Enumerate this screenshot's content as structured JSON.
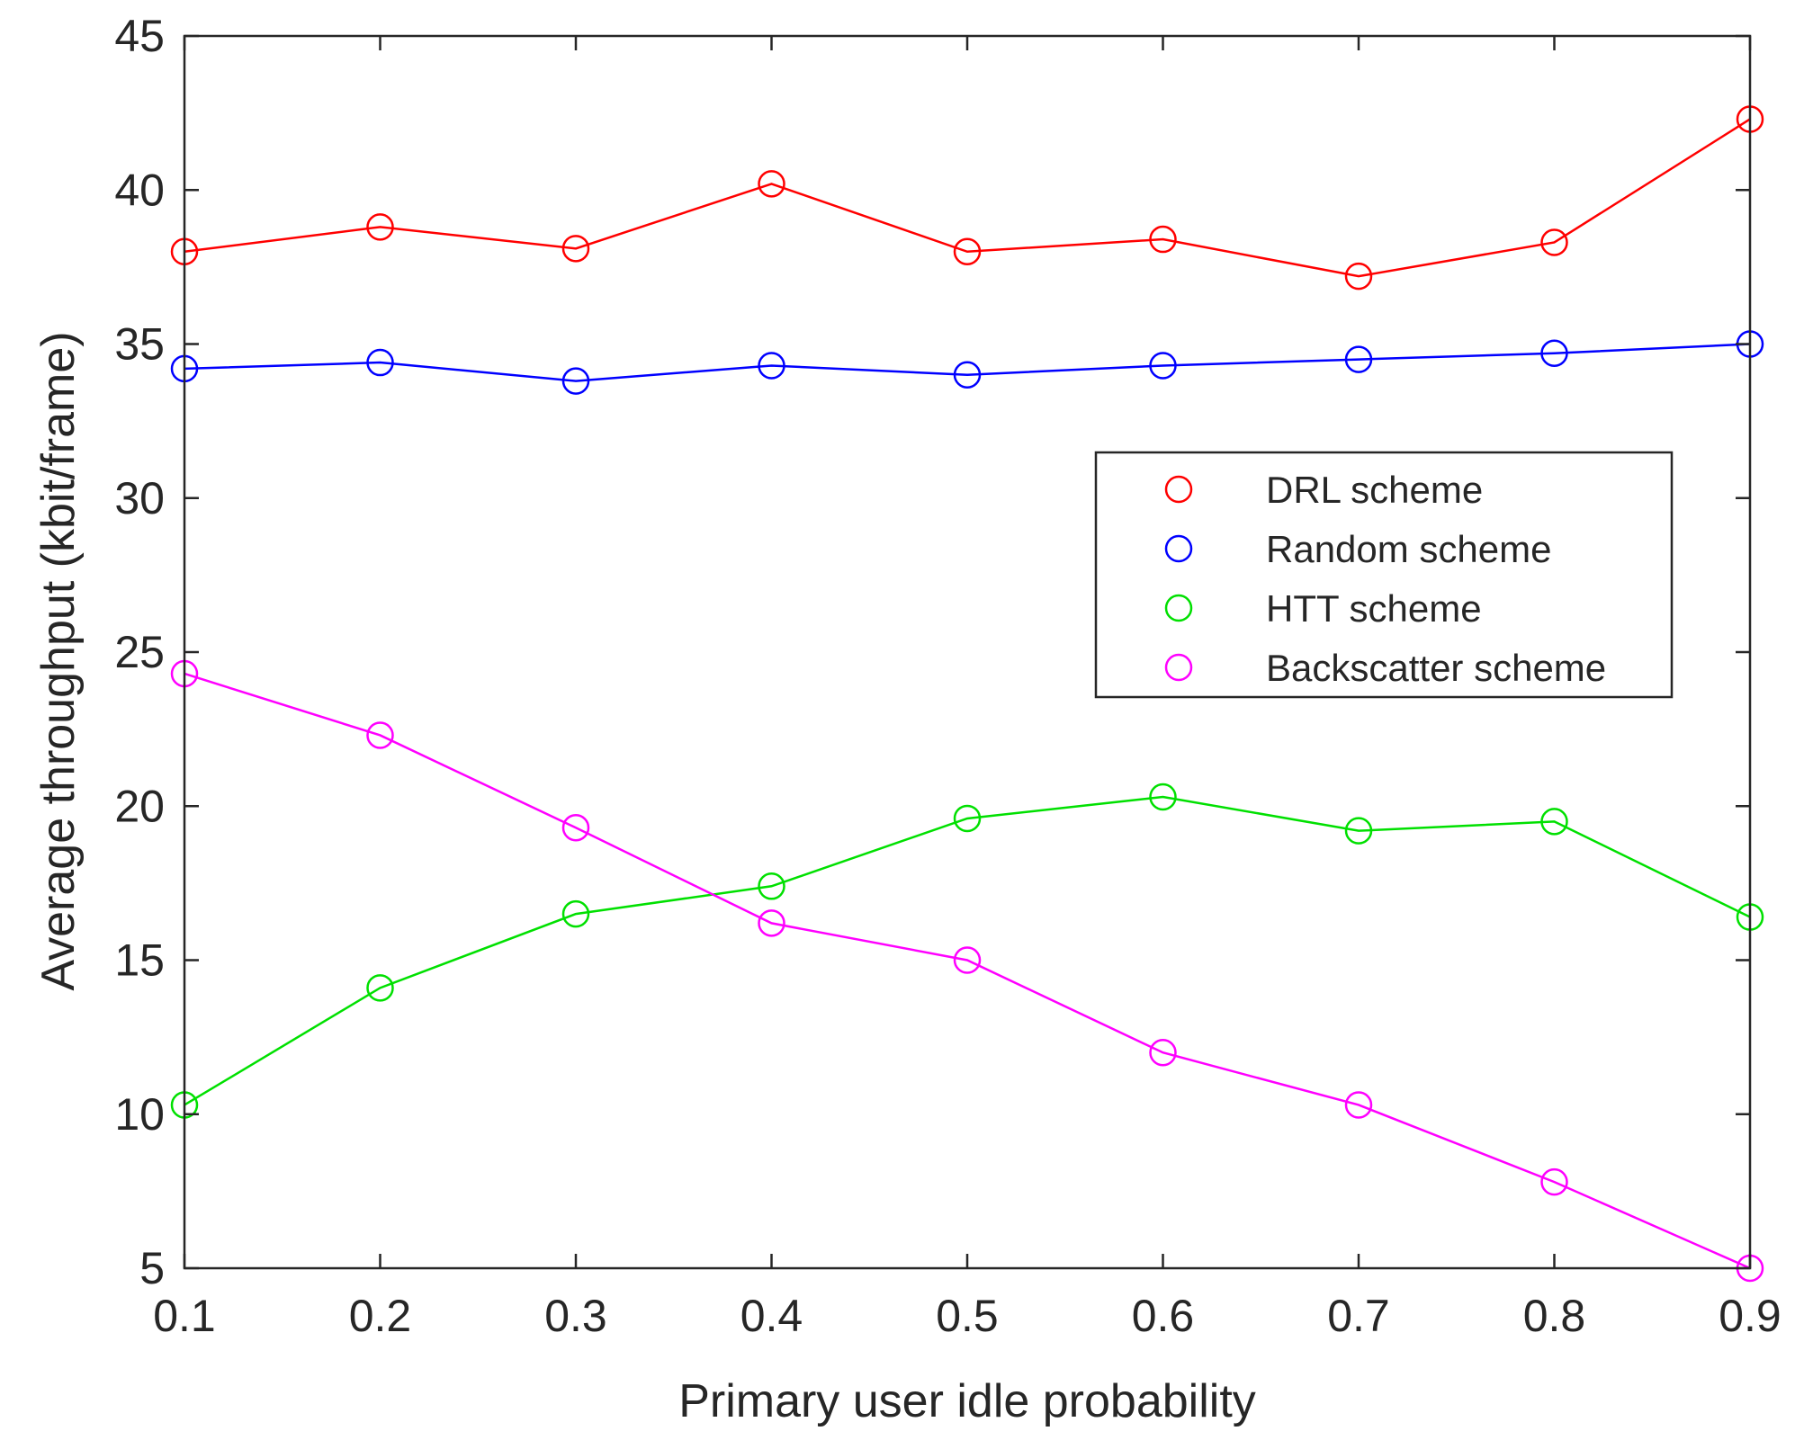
{
  "chart_data": {
    "type": "line",
    "title": "",
    "xlabel": "Primary user idle probability",
    "ylabel": "Average throughput  (kbit/frame)",
    "xlim": [
      0.1,
      0.9
    ],
    "ylim": [
      5,
      45
    ],
    "xticks": [
      "0.1",
      "0.2",
      "0.3",
      "0.4",
      "0.5",
      "0.6",
      "0.7",
      "0.8",
      "0.9"
    ],
    "yticks": [
      "5",
      "10",
      "15",
      "20",
      "25",
      "30",
      "35",
      "40",
      "45"
    ],
    "grid": false,
    "legend_position": "center-right",
    "x": [
      0.1,
      0.2,
      0.3,
      0.4,
      0.5,
      0.6,
      0.7,
      0.8,
      0.9
    ],
    "series": [
      {
        "name": "DRL scheme",
        "color": "#ff0000",
        "marker": "circle",
        "values": [
          38.0,
          38.8,
          38.1,
          40.2,
          38.0,
          38.4,
          37.2,
          38.3,
          42.3
        ]
      },
      {
        "name": "Random scheme",
        "color": "#0000ff",
        "marker": "circle",
        "values": [
          34.2,
          34.4,
          33.8,
          34.3,
          34.0,
          34.3,
          34.5,
          34.7,
          35.0
        ]
      },
      {
        "name": "HTT scheme",
        "color": "#00e000",
        "marker": "circle",
        "values": [
          10.3,
          14.1,
          16.5,
          17.4,
          19.6,
          20.3,
          19.2,
          19.5,
          16.4
        ]
      },
      {
        "name": "Backscatter scheme",
        "color": "#ff00ff",
        "marker": "circle",
        "values": [
          24.3,
          22.3,
          19.3,
          16.2,
          15.0,
          12.0,
          10.3,
          7.8,
          5.0
        ]
      }
    ]
  }
}
